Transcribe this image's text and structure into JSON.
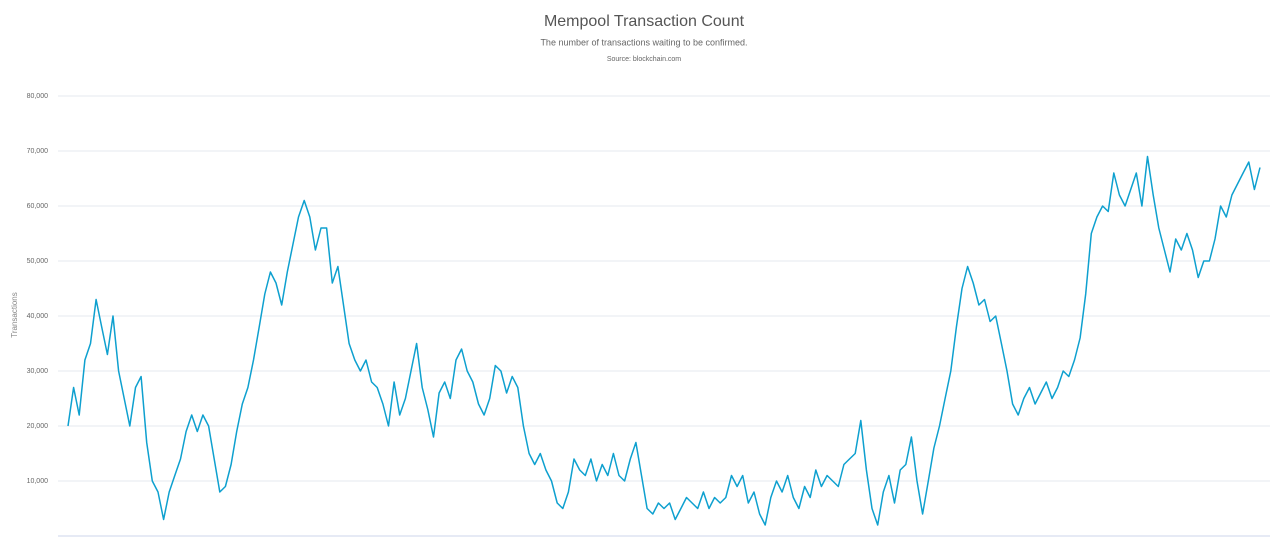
{
  "chart_data": {
    "type": "line",
    "title": "Mempool Transaction Count",
    "subtitle": "The number of transactions waiting to be confirmed.",
    "source": "Source: blockchain.com",
    "y_label": "Transactions",
    "color": "#0ea0cf",
    "grid": true,
    "ylim": [
      0,
      80000
    ],
    "yticks": [
      {
        "value": 10000,
        "label": "10,000"
      },
      {
        "value": 20000,
        "label": "20,000"
      },
      {
        "value": 30000,
        "label": "30,000"
      },
      {
        "value": 40000,
        "label": "40,000"
      },
      {
        "value": 50000,
        "label": "50,000"
      },
      {
        "value": 60000,
        "label": "60,000"
      },
      {
        "value": 70000,
        "label": "70,000"
      },
      {
        "value": 80000,
        "label": "80,000"
      }
    ],
    "values": [
      20000,
      27000,
      22000,
      32000,
      35000,
      43000,
      38000,
      33000,
      40000,
      30000,
      25000,
      20000,
      27000,
      29000,
      17000,
      10000,
      8000,
      3000,
      8000,
      11000,
      14000,
      19000,
      22000,
      19000,
      22000,
      20000,
      14000,
      8000,
      9000,
      13000,
      19000,
      24000,
      27000,
      32000,
      38000,
      44000,
      48000,
      46000,
      42000,
      48000,
      53000,
      58000,
      61000,
      58000,
      52000,
      56000,
      56000,
      46000,
      49000,
      42000,
      35000,
      32000,
      30000,
      32000,
      28000,
      27000,
      24000,
      20000,
      28000,
      22000,
      25000,
      30000,
      35000,
      27000,
      23000,
      18000,
      26000,
      28000,
      25000,
      32000,
      34000,
      30000,
      28000,
      24000,
      22000,
      25000,
      31000,
      30000,
      26000,
      29000,
      27000,
      20000,
      15000,
      13000,
      15000,
      12000,
      10000,
      6000,
      5000,
      8000,
      14000,
      12000,
      11000,
      14000,
      10000,
      13000,
      11000,
      15000,
      11000,
      10000,
      14000,
      17000,
      11000,
      5000,
      4000,
      6000,
      5000,
      6000,
      3000,
      5000,
      7000,
      6000,
      5000,
      8000,
      5000,
      7000,
      6000,
      7000,
      11000,
      9000,
      11000,
      6000,
      8000,
      4000,
      2000,
      7000,
      10000,
      8000,
      11000,
      7000,
      5000,
      9000,
      7000,
      12000,
      9000,
      11000,
      10000,
      9000,
      13000,
      14000,
      15000,
      21000,
      12000,
      5000,
      2000,
      8000,
      11000,
      6000,
      12000,
      13000,
      18000,
      10000,
      4000,
      10000,
      16000,
      20000,
      25000,
      30000,
      38000,
      45000,
      49000,
      46000,
      42000,
      43000,
      39000,
      40000,
      35000,
      30000,
      24000,
      22000,
      25000,
      27000,
      24000,
      26000,
      28000,
      25000,
      27000,
      30000,
      29000,
      32000,
      36000,
      44000,
      55000,
      58000,
      60000,
      59000,
      66000,
      62000,
      60000,
      63000,
      66000,
      60000,
      69000,
      62000,
      56000,
      52000,
      48000,
      54000,
      52000,
      55000,
      52000,
      47000,
      50000,
      50000,
      54000,
      60000,
      58000,
      62000,
      64000,
      66000,
      68000,
      63000,
      67000
    ]
  }
}
